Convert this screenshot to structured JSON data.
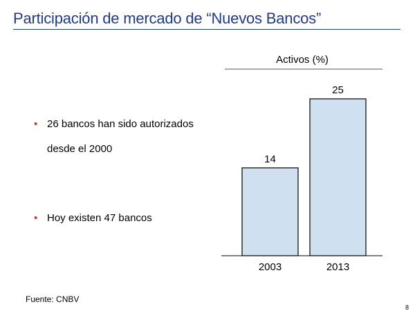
{
  "slide": {
    "title": "Participación de mercado de “Nuevos Bancos”",
    "bullets": [
      {
        "line1": "26 bancos han sido autorizados",
        "line2": "desde el 2000"
      },
      {
        "line1": "Hoy existen 47 bancos"
      }
    ],
    "bullet_glyph": "•",
    "source": "Fuente: CNBV",
    "page_number": "8"
  },
  "colors": {
    "title": "#1f3a8a",
    "bullet": "#c0392b",
    "bar_fill": "#cfe0f1",
    "bar_stroke": "#000000"
  },
  "chart_data": {
    "type": "bar",
    "title": "Activos (%)",
    "categories": [
      "2003",
      "2013"
    ],
    "values": [
      14,
      25
    ],
    "data_labels": [
      "14",
      "25"
    ],
    "ylim": [
      0,
      25
    ],
    "grid": false,
    "legend": "none"
  }
}
